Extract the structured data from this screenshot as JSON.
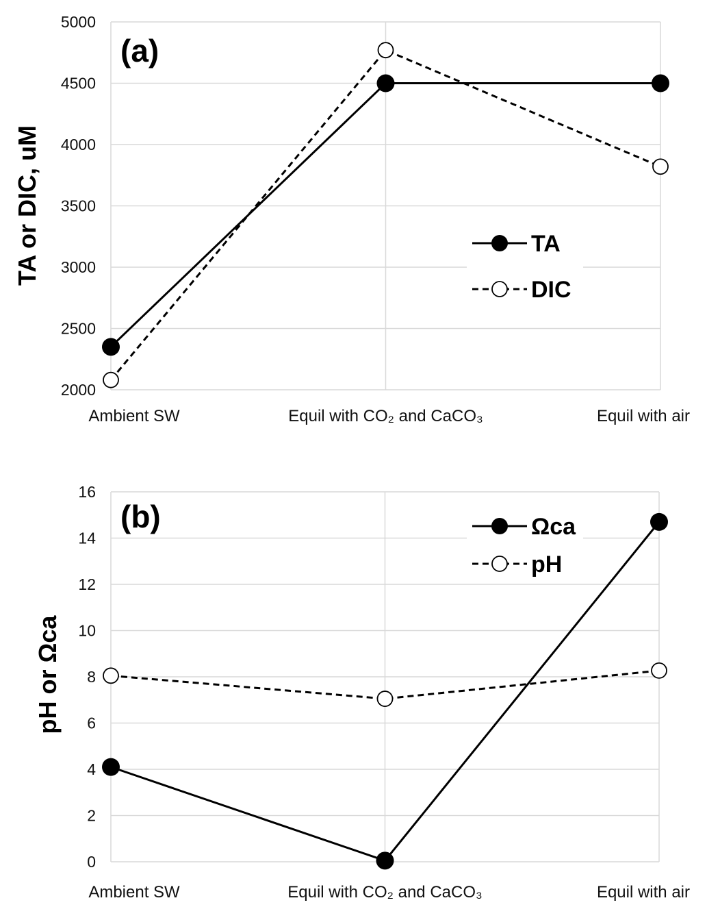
{
  "chart_data": [
    {
      "type": "line",
      "panel_label": "(a)",
      "categories": [
        "Ambient SW",
        "Equil with CO₂ and CaCO₃",
        "Equil with air"
      ],
      "ylabel": "TA or DIC, uM",
      "ylim": [
        2000,
        5000
      ],
      "yticks": [
        2000,
        2500,
        3000,
        3500,
        4000,
        4500,
        5000
      ],
      "grid": true,
      "legend": "center-right",
      "series": [
        {
          "name": "TA",
          "values": [
            2350,
            4500,
            4500
          ],
          "marker": "filled-circle",
          "line": "solid",
          "color": "#000000"
        },
        {
          "name": "DIC",
          "values": [
            2080,
            4770,
            3820
          ],
          "marker": "open-circle",
          "line": "dashed",
          "color": "#000000"
        }
      ]
    },
    {
      "type": "line",
      "panel_label": "(b)",
      "categories": [
        "Ambient SW",
        "Equil with CO₂ and CaCO₃",
        "Equil with air"
      ],
      "ylabel": "pH or Ωca",
      "ylim": [
        0,
        16
      ],
      "yticks": [
        0,
        2,
        4,
        6,
        8,
        10,
        12,
        14,
        16
      ],
      "grid": true,
      "legend": "top-right",
      "series": [
        {
          "name": "Ωca",
          "values": [
            4.1,
            0.05,
            14.7
          ],
          "marker": "filled-circle",
          "line": "solid",
          "color": "#000000"
        },
        {
          "name": "pH",
          "values": [
            8.05,
            7.05,
            8.27
          ],
          "marker": "open-circle",
          "line": "dashed",
          "color": "#000000"
        }
      ]
    }
  ]
}
